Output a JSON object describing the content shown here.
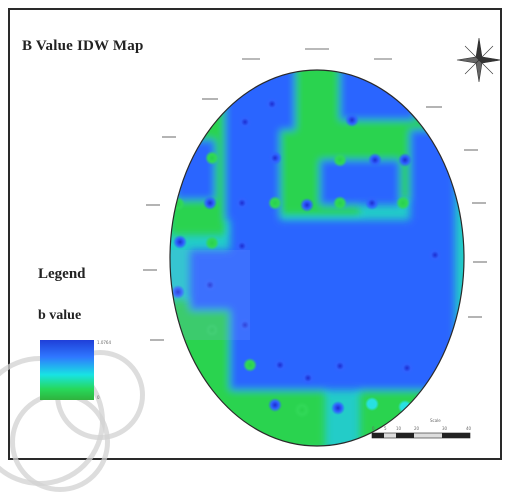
{
  "map": {
    "title": "B Value IDW Map",
    "legend_title": "Legend",
    "legend_subtitle": "b value",
    "legend_high": "1.0764",
    "legend_low": "0",
    "scale_title": "Scale",
    "scale_ticks": [
      "0",
      "5",
      "10",
      "20",
      "30",
      "40"
    ],
    "north_icon": "north-arrow-icon",
    "colors": {
      "high": "#1f3fd8",
      "mid": "#18e3e3",
      "low": "#2fb23d",
      "frame": "#2a2a2a"
    }
  }
}
